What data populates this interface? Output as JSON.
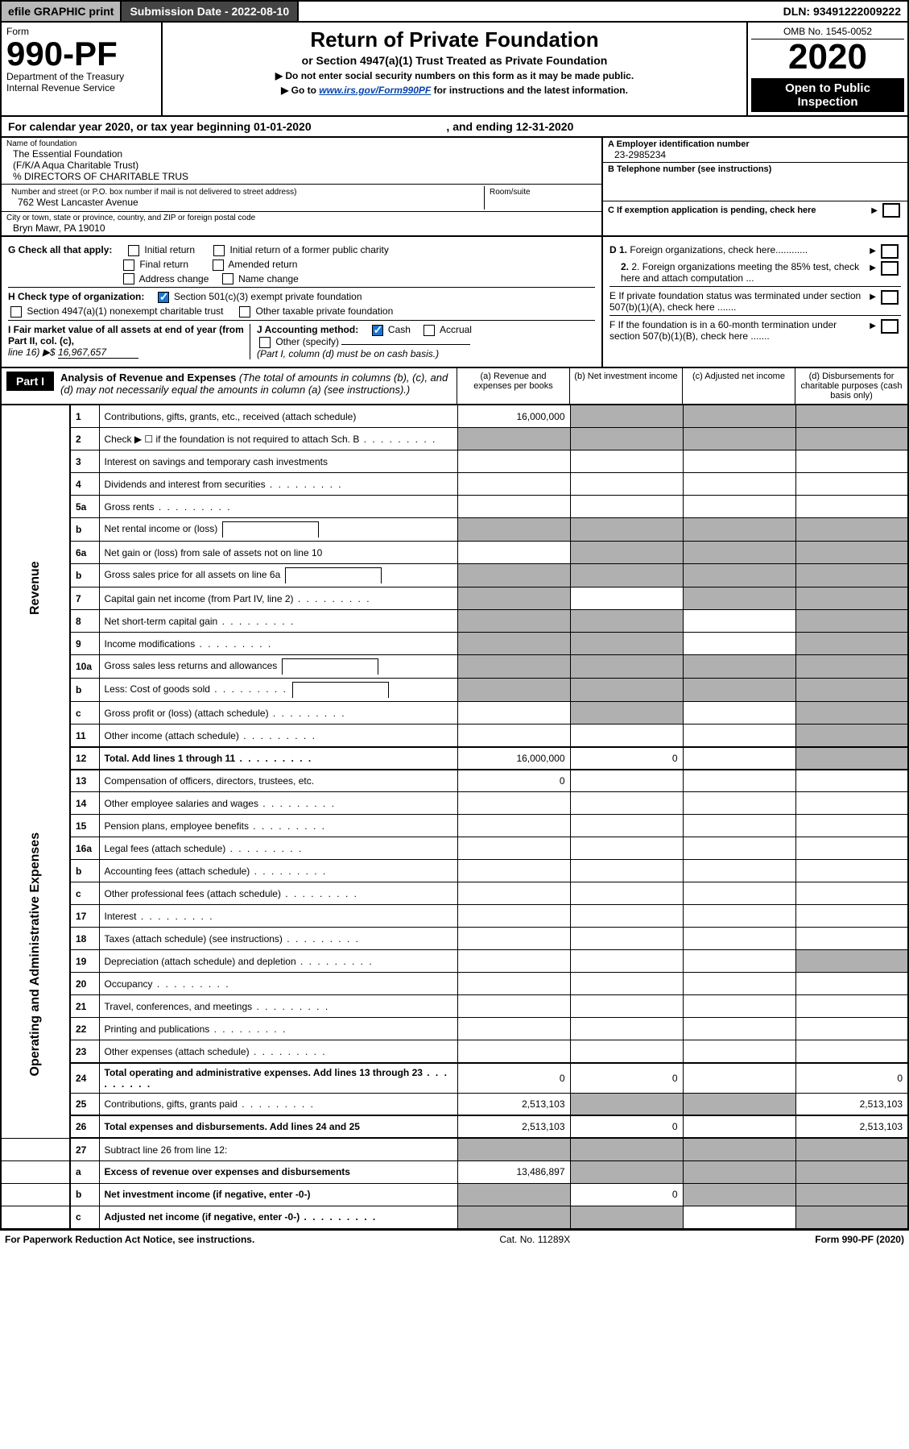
{
  "topbar": {
    "efile_label": "efile GRAPHIC print",
    "subdate_label": "Submission Date - 2022-08-10",
    "dln_label": "DLN: 93491222009222"
  },
  "header": {
    "form_word": "Form",
    "form_no": "990-PF",
    "dept": "Department of the Treasury",
    "irs": "Internal Revenue Service",
    "title": "Return of Private Foundation",
    "sub1": "or Section 4947(a)(1) Trust Treated as Private Foundation",
    "sub2a": "▶ Do not enter social security numbers on this form as it may be made public.",
    "sub2b_prefix": "▶ Go to ",
    "sub2b_link": "www.irs.gov/Form990PF",
    "sub2b_suffix": " for instructions and the latest information.",
    "omb": "OMB No. 1545-0052",
    "year": "2020",
    "openpub": "Open to Public Inspection"
  },
  "calendar": {
    "text_a": "For calendar year 2020, or tax year beginning 01-01-2020",
    "text_b": ", and ending 12-31-2020"
  },
  "ident": {
    "name_label": "Name of foundation",
    "name1": "The Essential Foundation",
    "name2": "(F/K/A Aqua Charitable Trust)",
    "name3": "% DIRECTORS OF CHARITABLE TRUS",
    "addr_label": "Number and street (or P.O. box number if mail is not delivered to street address)",
    "addr": "762 West Lancaster Avenue",
    "room_label": "Room/suite",
    "city_label": "City or town, state or province, country, and ZIP or foreign postal code",
    "city": "Bryn Mawr, PA  19010",
    "a_label": "A Employer identification number",
    "a_val": "23-2985234",
    "b_label": "B Telephone number (see instructions)",
    "c_label": "C If exemption application is pending, check here",
    "d1_label": "D 1. Foreign organizations, check here",
    "d2_label": "2. Foreign organizations meeting the 85% test, check here and attach computation ...",
    "e_label": "E  If private foundation status was terminated under section 507(b)(1)(A), check here .......",
    "f_label": "F  If the foundation is in a 60-month termination under section 507(b)(1)(B), check here ......."
  },
  "checks": {
    "g_label": "G Check all that apply:",
    "g1": "Initial return",
    "g2": "Initial return of a former public charity",
    "g3": "Final return",
    "g4": "Amended return",
    "g5": "Address change",
    "g6": "Name change",
    "h_label": "H Check type of organization:",
    "h1": "Section 501(c)(3) exempt private foundation",
    "h2": "Section 4947(a)(1) nonexempt charitable trust",
    "h3": "Other taxable private foundation",
    "i_label": "I Fair market value of all assets at end of year (from Part II, col. (c),",
    "i_line": "line 16) ▶$ ",
    "i_val": "16,967,657",
    "j_label": "J Accounting method:",
    "j1": "Cash",
    "j2": "Accrual",
    "j3": "Other (specify)",
    "j_note": "(Part I, column (d) must be on cash basis.)"
  },
  "part1": {
    "tab": "Part I",
    "title_bold": "Analysis of Revenue and Expenses",
    "title_rest": " (The total of amounts in columns (b), (c), and (d) may not necessarily equal the amounts in column (a) (see instructions).)",
    "col_a": "(a)   Revenue and expenses per books",
    "col_b": "(b)   Net investment income",
    "col_c": "(c)   Adjusted net income",
    "col_d": "(d)   Disbursements for charitable purposes (cash basis only)"
  },
  "side_labels": {
    "revenue": "Revenue",
    "opex": "Operating and Administrative Expenses"
  },
  "rows": [
    {
      "section": "rev",
      "no": "1",
      "desc": "Contributions, gifts, grants, etc., received (attach schedule)",
      "a": "16,000,000",
      "b": "",
      "c": "",
      "d": "",
      "shade": [
        "b",
        "c",
        "d"
      ]
    },
    {
      "section": "rev",
      "no": "2",
      "desc": "Check ▶ ☐ if the foundation is not required to attach Sch. B",
      "shade": [
        "a",
        "b",
        "c",
        "d"
      ],
      "dots": true,
      "descHtml": "Check ▶"
    },
    {
      "section": "rev",
      "no": "3",
      "desc": "Interest on savings and temporary cash investments"
    },
    {
      "section": "rev",
      "no": "4",
      "desc": "Dividends and interest from securities",
      "dots": true
    },
    {
      "section": "rev",
      "no": "5a",
      "desc": "Gross rents",
      "dots": true
    },
    {
      "section": "rev",
      "no": "b",
      "desc": "Net rental income or (loss)",
      "inlinebox": true,
      "shade": [
        "a",
        "b",
        "c",
        "d"
      ]
    },
    {
      "section": "rev",
      "no": "6a",
      "desc": "Net gain or (loss) from sale of assets not on line 10",
      "shade": [
        "b",
        "c",
        "d"
      ]
    },
    {
      "section": "rev",
      "no": "b",
      "desc": "Gross sales price for all assets on line 6a",
      "inlinebox": true,
      "shade": [
        "a",
        "b",
        "c",
        "d"
      ]
    },
    {
      "section": "rev",
      "no": "7",
      "desc": "Capital gain net income (from Part IV, line 2)",
      "dots": true,
      "shade": [
        "a",
        "c",
        "d"
      ]
    },
    {
      "section": "rev",
      "no": "8",
      "desc": "Net short-term capital gain",
      "dots": true,
      "shade": [
        "a",
        "b",
        "d"
      ]
    },
    {
      "section": "rev",
      "no": "9",
      "desc": "Income modifications",
      "dots": true,
      "shade": [
        "a",
        "b",
        "d"
      ]
    },
    {
      "section": "rev",
      "no": "10a",
      "desc": "Gross sales less returns and allowances",
      "inlinebox": true,
      "shade": [
        "a",
        "b",
        "c",
        "d"
      ]
    },
    {
      "section": "rev",
      "no": "b",
      "desc": "Less: Cost of goods sold",
      "dots": true,
      "inlinebox": true,
      "shade": [
        "a",
        "b",
        "c",
        "d"
      ]
    },
    {
      "section": "rev",
      "no": "c",
      "desc": "Gross profit or (loss) (attach schedule)",
      "dots": true,
      "shade": [
        "b",
        "d"
      ]
    },
    {
      "section": "rev",
      "no": "11",
      "desc": "Other income (attach schedule)",
      "dots": true,
      "shade": [
        "d"
      ]
    },
    {
      "section": "rev",
      "no": "12",
      "desc": "Total. Add lines 1 through 11",
      "dots": true,
      "bold": true,
      "a": "16,000,000",
      "b": "0",
      "shade": [
        "d"
      ],
      "heavytop": true
    },
    {
      "section": "op",
      "no": "13",
      "desc": "Compensation of officers, directors, trustees, etc.",
      "a": "0",
      "heavytop": true
    },
    {
      "section": "op",
      "no": "14",
      "desc": "Other employee salaries and wages",
      "dots": true
    },
    {
      "section": "op",
      "no": "15",
      "desc": "Pension plans, employee benefits",
      "dots": true
    },
    {
      "section": "op",
      "no": "16a",
      "desc": "Legal fees (attach schedule)",
      "dots": true
    },
    {
      "section": "op",
      "no": "b",
      "desc": "Accounting fees (attach schedule)",
      "dots": true
    },
    {
      "section": "op",
      "no": "c",
      "desc": "Other professional fees (attach schedule)",
      "dots": true
    },
    {
      "section": "op",
      "no": "17",
      "desc": "Interest",
      "dots": true
    },
    {
      "section": "op",
      "no": "18",
      "desc": "Taxes (attach schedule) (see instructions)",
      "dots": true
    },
    {
      "section": "op",
      "no": "19",
      "desc": "Depreciation (attach schedule) and depletion",
      "dots": true,
      "shade": [
        "d"
      ]
    },
    {
      "section": "op",
      "no": "20",
      "desc": "Occupancy",
      "dots": true
    },
    {
      "section": "op",
      "no": "21",
      "desc": "Travel, conferences, and meetings",
      "dots": true
    },
    {
      "section": "op",
      "no": "22",
      "desc": "Printing and publications",
      "dots": true
    },
    {
      "section": "op",
      "no": "23",
      "desc": "Other expenses (attach schedule)",
      "dots": true
    },
    {
      "section": "op",
      "no": "24",
      "desc": "Total operating and administrative expenses. Add lines 13 through 23",
      "bold": true,
      "dots": true,
      "a": "0",
      "b": "0",
      "d": "0",
      "heavytop": true
    },
    {
      "section": "op",
      "no": "25",
      "desc": "Contributions, gifts, grants paid",
      "dots": true,
      "a": "2,513,103",
      "d": "2,513,103",
      "shade": [
        "b",
        "c"
      ]
    },
    {
      "section": "op",
      "no": "26",
      "desc": "Total expenses and disbursements. Add lines 24 and 25",
      "bold": true,
      "a": "2,513,103",
      "b": "0",
      "d": "2,513,103",
      "heavytop": true
    },
    {
      "section": "none",
      "no": "27",
      "desc": "Subtract line 26 from line 12:",
      "shade": [
        "a",
        "b",
        "c",
        "d"
      ],
      "heavytop": true
    },
    {
      "section": "none",
      "no": "a",
      "desc": "Excess of revenue over expenses and disbursements",
      "bold": true,
      "a": "13,486,897",
      "shade": [
        "b",
        "c",
        "d"
      ]
    },
    {
      "section": "none",
      "no": "b",
      "desc": "Net investment income (if negative, enter -0-)",
      "bold": true,
      "b": "0",
      "shade": [
        "a",
        "c",
        "d"
      ]
    },
    {
      "section": "none",
      "no": "c",
      "desc": "Adjusted net income (if negative, enter -0-)",
      "bold": true,
      "dots": true,
      "shade": [
        "a",
        "b",
        "d"
      ]
    }
  ],
  "footer": {
    "left": "For Paperwork Reduction Act Notice, see instructions.",
    "center": "Cat. No. 11289X",
    "right": "Form 990-PF (2020)"
  },
  "colors": {
    "link": "#0645ad",
    "shade": "#b0b0b0",
    "check_blue": "#1976d2"
  }
}
